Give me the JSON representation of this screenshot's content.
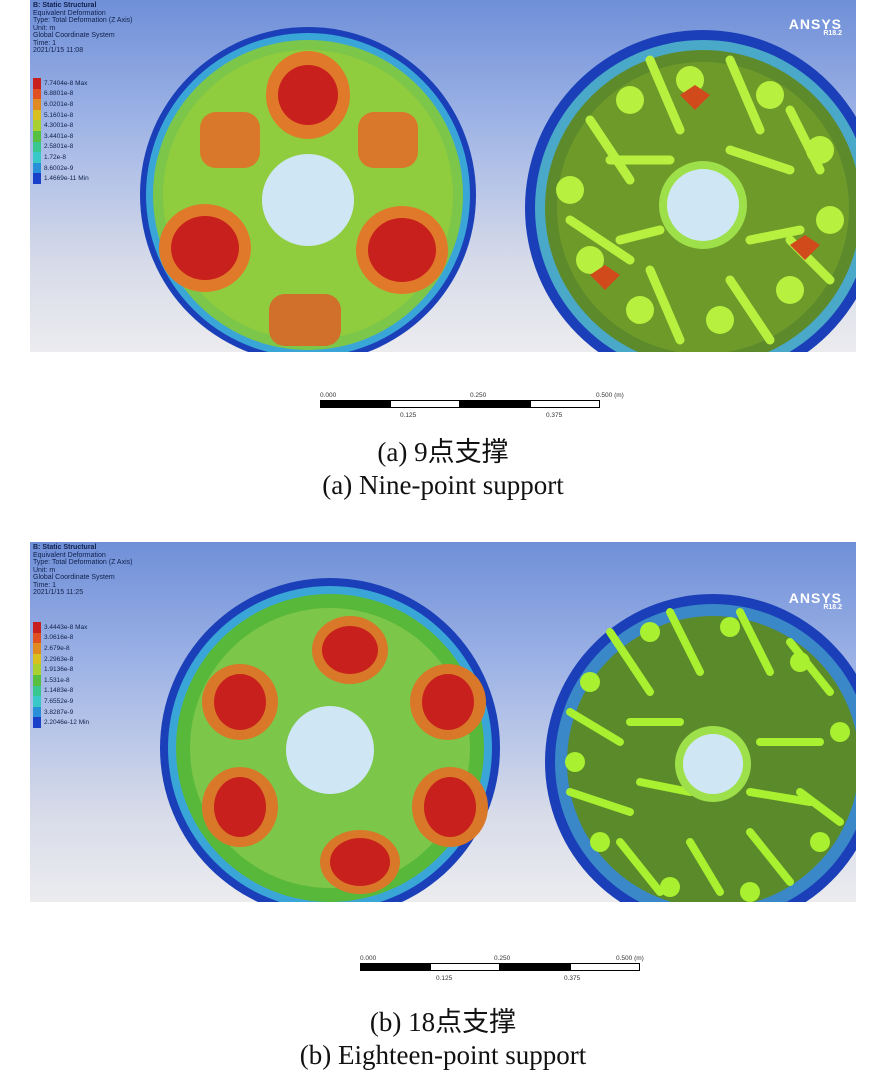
{
  "panels": [
    {
      "header": {
        "line1": "B: Static Structural",
        "line2": "Equivalent Deformation",
        "line3": "Type: Total Deformation (Z Axis)",
        "line4": "Unit: m",
        "line5": "Global Coordinate System",
        "line6": "Time: 1",
        "line7": "2021/1/15 11:08"
      },
      "legend": [
        "7.7404e-8 Max",
        "6.8801e-8",
        "6.0201e-8",
        "5.1601e-8",
        "4.3001e-8",
        "3.4401e-8",
        "2.5801e-8",
        "1.72e-8",
        "8.6002e-9",
        "1.4669e-11 Min"
      ],
      "logo": {
        "name": "ANSYS",
        "version": "R18.2"
      },
      "scale": {
        "t0": "0.000",
        "t1": "0.250",
        "t2": "0.500 (m)",
        "m1": "0.125",
        "m2": "0.375"
      }
    },
    {
      "header": {
        "line1": "B: Static Structural",
        "line2": "Equivalent Deformation",
        "line3": "Type: Total Deformation (Z Axis)",
        "line4": "Unit: m",
        "line5": "Global Coordinate System",
        "line6": "Time: 1",
        "line7": "2021/1/15 11:25"
      },
      "legend": [
        "3.4443e-8 Max",
        "3.0616e-8",
        "2.679e-8",
        "2.2963e-8",
        "1.9136e-8",
        "1.531e-8",
        "1.1483e-8",
        "7.6552e-9",
        "3.8287e-9",
        "2.2046e-12 Min"
      ],
      "logo": {
        "name": "ANSYS",
        "version": "R18.2"
      },
      "scale": {
        "t0": "0.000",
        "t1": "0.250",
        "t2": "0.500 (m)",
        "m1": "0.125",
        "m2": "0.375"
      }
    }
  ],
  "captions": {
    "a_cn": "(a) 9点支撑",
    "a_en": "(a) Nine-point support",
    "b_cn": "(b) 18点支撑",
    "b_en": "(b) Eighteen-point support"
  },
  "colors": {
    "max": "#c8201c",
    "orange": "#e07820",
    "yellowgreen": "#a8d030",
    "green": "#58b83a",
    "cyan": "#38c8c8",
    "blue": "#1840c8",
    "bg_top": "#6f8fd8"
  }
}
